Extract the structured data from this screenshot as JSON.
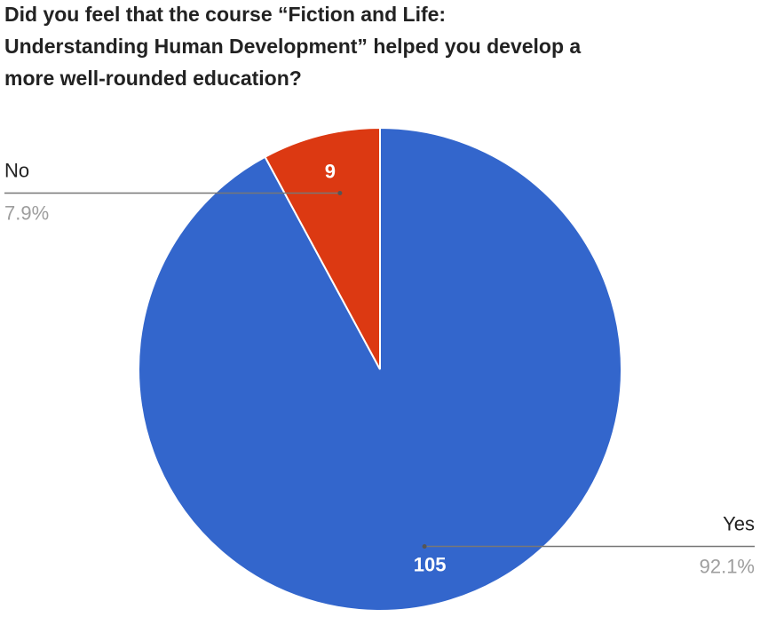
{
  "chart_data": {
    "type": "pie",
    "title_lines": [
      "Did you feel that the course “Fiction and Life:",
      "Understanding Human Development” helped you develop a",
      "more well-rounded education?"
    ],
    "categories": [
      "Yes",
      "No"
    ],
    "values": [
      105,
      9
    ],
    "percent_labels": [
      "92.1%",
      "7.9%"
    ],
    "colors": [
      "#3366cc",
      "#dc3912"
    ]
  }
}
